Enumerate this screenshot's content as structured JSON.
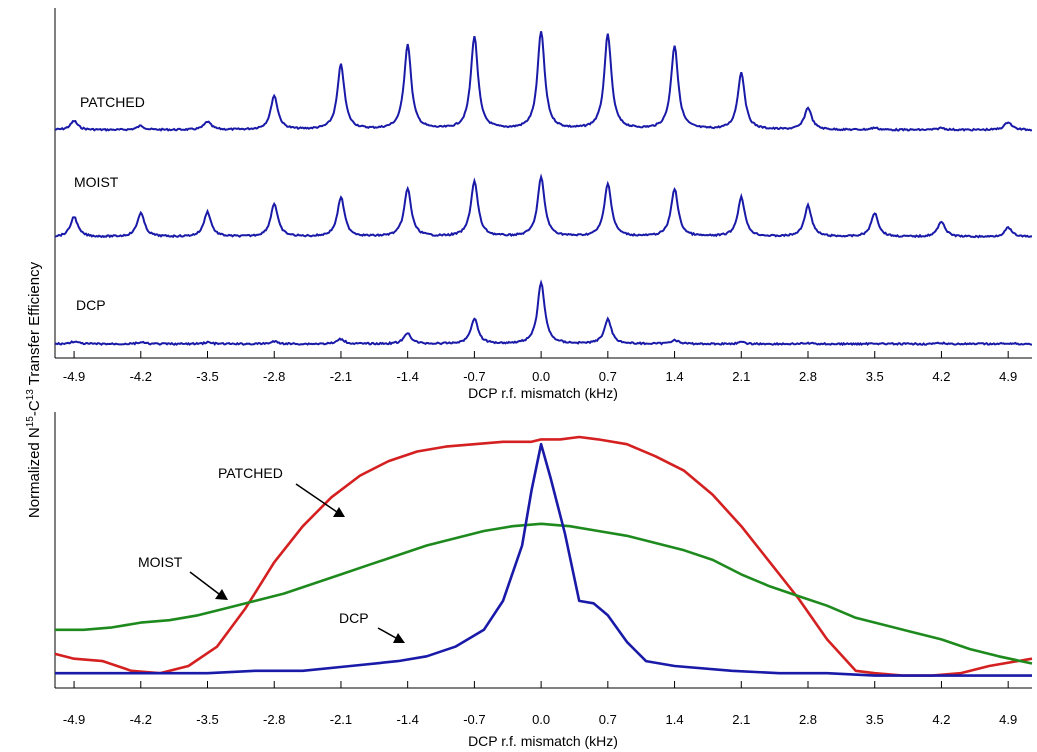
{
  "ylabel_main": "Normalized N",
  "ylabel_sup1": "15",
  "ylabel_mid": "-C",
  "ylabel_sup2": "13",
  "ylabel_tail": " Transfer Efficiency",
  "chart_data": [
    {
      "type": "line",
      "panel": "top",
      "xlabel": "DCP r.f. mismatch (kHz)",
      "ylabel": "",
      "xlim": [
        -5.1,
        5.15
      ],
      "ticks": [
        -4.9,
        -4.2,
        -3.5,
        -2.8,
        -2.1,
        -1.4,
        -0.7,
        0.0,
        0.7,
        1.4,
        2.1,
        2.8,
        3.5,
        4.2,
        4.9
      ],
      "tick_labels": [
        "-4.9",
        "-4.2",
        "-3.5",
        "-2.8",
        "-2.1",
        "-1.4",
        "-0.7",
        "0.0",
        "0.7",
        "1.4",
        "2.1",
        "2.8",
        "3.5",
        "4.2",
        "4.9"
      ],
      "grid": false,
      "color": "#1a1aa8",
      "series": [
        {
          "name": "PATCHED",
          "peak_positions": [
            -4.9,
            -4.2,
            -3.5,
            -2.8,
            -2.1,
            -1.4,
            -0.7,
            0.0,
            0.7,
            1.4,
            2.1,
            2.8,
            3.5,
            4.2,
            4.9
          ],
          "peak_heights": [
            0.09,
            0.04,
            0.08,
            0.34,
            0.65,
            0.85,
            0.93,
            0.98,
            0.95,
            0.84,
            0.57,
            0.22,
            0.02,
            0.02,
            0.08
          ]
        },
        {
          "name": "MOIST",
          "peak_positions": [
            -4.9,
            -4.2,
            -3.5,
            -2.8,
            -2.1,
            -1.4,
            -0.7,
            0.0,
            0.7,
            1.4,
            2.1,
            2.8,
            3.5,
            4.2,
            4.9
          ],
          "peak_heights": [
            0.22,
            0.26,
            0.27,
            0.36,
            0.43,
            0.52,
            0.6,
            0.64,
            0.58,
            0.52,
            0.43,
            0.34,
            0.26,
            0.17,
            0.1
          ]
        },
        {
          "name": "DCP",
          "peak_positions": [
            -4.9,
            -4.2,
            -3.5,
            -2.8,
            -2.1,
            -1.4,
            -0.7,
            0.0,
            0.7,
            1.4,
            2.1,
            2.8,
            3.5,
            4.2,
            4.9
          ],
          "peak_heights": [
            0.03,
            0.02,
            0.02,
            0.03,
            0.06,
            0.13,
            0.31,
            0.75,
            0.3,
            0.05,
            0.02,
            0.01,
            0.01,
            0.01,
            0.01
          ]
        }
      ]
    },
    {
      "type": "line",
      "panel": "bottom",
      "xlabel": "DCP r.f. mismatch (kHz)",
      "ylabel": "",
      "xlim": [
        -5.1,
        5.15
      ],
      "ylim": [
        0,
        1
      ],
      "ticks": [
        -4.9,
        -4.2,
        -3.5,
        -2.8,
        -2.1,
        -1.4,
        -0.7,
        0.0,
        0.7,
        1.4,
        2.1,
        2.8,
        3.5,
        4.2,
        4.9
      ],
      "tick_labels": [
        "-4.9",
        "-4.2",
        "-3.5",
        "-2.8",
        "-2.1",
        "-1.4",
        "-0.7",
        "0.0",
        "0.7",
        "1.4",
        "2.1",
        "2.8",
        "3.5",
        "4.2",
        "4.9"
      ],
      "grid": false,
      "series": [
        {
          "name": "PATCHED",
          "color": "#d42020",
          "x": [
            -5.1,
            -4.9,
            -4.6,
            -4.3,
            -4.0,
            -3.7,
            -3.4,
            -3.1,
            -2.8,
            -2.5,
            -2.2,
            -1.9,
            -1.6,
            -1.3,
            -1.0,
            -0.7,
            -0.4,
            -0.1,
            0.0,
            0.2,
            0.4,
            0.6,
            0.9,
            1.2,
            1.5,
            1.8,
            2.1,
            2.4,
            2.7,
            3.0,
            3.3,
            3.5,
            3.8,
            4.1,
            4.4,
            4.7,
            5.0,
            5.15
          ],
          "y": [
            0.1,
            0.08,
            0.07,
            0.03,
            0.02,
            0.05,
            0.13,
            0.29,
            0.48,
            0.63,
            0.75,
            0.84,
            0.9,
            0.94,
            0.96,
            0.97,
            0.98,
            0.98,
            0.99,
            0.99,
            1.0,
            0.99,
            0.97,
            0.92,
            0.86,
            0.76,
            0.63,
            0.48,
            0.33,
            0.16,
            0.03,
            0.02,
            0.01,
            0.01,
            0.02,
            0.05,
            0.07,
            0.08
          ]
        },
        {
          "name": "MOIST",
          "color": "#1e8a1e",
          "x": [
            -5.1,
            -4.8,
            -4.5,
            -4.2,
            -3.9,
            -3.6,
            -3.3,
            -3.0,
            -2.7,
            -2.4,
            -2.1,
            -1.8,
            -1.5,
            -1.2,
            -0.9,
            -0.6,
            -0.3,
            0.0,
            0.3,
            0.6,
            0.9,
            1.2,
            1.5,
            1.8,
            2.1,
            2.4,
            2.7,
            3.0,
            3.3,
            3.6,
            3.9,
            4.2,
            4.5,
            4.8,
            5.15
          ],
          "y": [
            0.2,
            0.2,
            0.21,
            0.23,
            0.24,
            0.26,
            0.29,
            0.32,
            0.35,
            0.39,
            0.43,
            0.47,
            0.51,
            0.55,
            0.58,
            0.61,
            0.63,
            0.64,
            0.63,
            0.61,
            0.59,
            0.56,
            0.53,
            0.49,
            0.43,
            0.38,
            0.34,
            0.3,
            0.25,
            0.22,
            0.19,
            0.16,
            0.12,
            0.09,
            0.06
          ]
        },
        {
          "name": "DCP",
          "color": "#1a1aa8",
          "x": [
            -5.1,
            -4.5,
            -4.0,
            -3.5,
            -3.0,
            -2.5,
            -2.0,
            -1.5,
            -1.2,
            -0.9,
            -0.6,
            -0.4,
            -0.2,
            -0.1,
            0.0,
            0.1,
            0.25,
            0.4,
            0.55,
            0.7,
            0.9,
            1.1,
            1.4,
            2.0,
            2.5,
            3.0,
            3.5,
            4.0,
            4.5,
            5.15
          ],
          "y": [
            0.02,
            0.02,
            0.02,
            0.02,
            0.03,
            0.03,
            0.05,
            0.07,
            0.09,
            0.13,
            0.2,
            0.32,
            0.55,
            0.78,
            0.97,
            0.83,
            0.6,
            0.32,
            0.31,
            0.26,
            0.15,
            0.07,
            0.05,
            0.03,
            0.02,
            0.02,
            0.01,
            0.01,
            0.01,
            0.01
          ]
        }
      ]
    }
  ],
  "annotations": {
    "top": {
      "patched": "PATCHED",
      "moist": "MOIST",
      "dcp": "DCP"
    },
    "bottom": {
      "patched": "PATCHED",
      "moist": "MOIST",
      "dcp": "DCP"
    }
  }
}
